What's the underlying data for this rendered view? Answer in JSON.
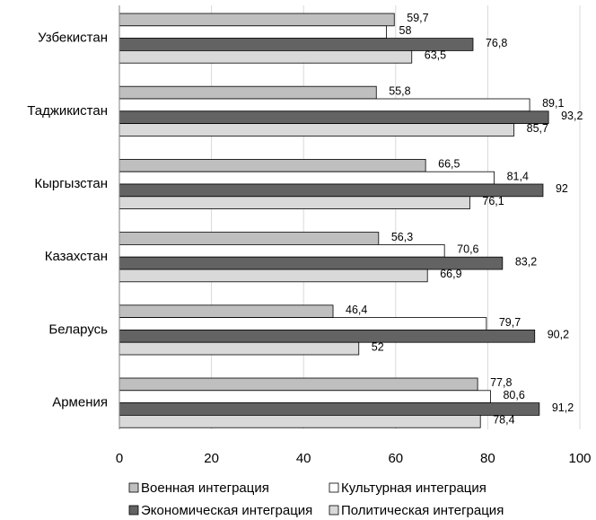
{
  "chart_data": {
    "type": "bar",
    "orientation": "horizontal",
    "title": "",
    "xlabel": "",
    "ylabel": "",
    "xlim": [
      0,
      100
    ],
    "x_ticks": [
      0,
      20,
      40,
      60,
      80,
      100
    ],
    "grid": "vertical",
    "legend_position": "bottom",
    "categories": [
      "Узбекистан",
      "Таджикистан",
      "Кыргызстан",
      "Казахстан",
      "Беларусь",
      "Армения"
    ],
    "series": [
      {
        "name": "Военная интеграция",
        "color": "#bfbfbf",
        "values": [
          59.7,
          55.8,
          66.5,
          56.3,
          46.4,
          77.8
        ],
        "labels": [
          "59,7",
          "55,8",
          "66,5",
          "56,3",
          "46,4",
          "77,8"
        ]
      },
      {
        "name": "Культурная интеграция",
        "color": "#ffffff",
        "values": [
          58,
          89.1,
          81.4,
          70.6,
          79.7,
          80.6
        ],
        "labels": [
          "58",
          "89,1",
          "81,4",
          "70,6",
          "79,7",
          "80,6"
        ]
      },
      {
        "name": "Экономическая интеграция",
        "color": "#636363",
        "values": [
          76.8,
          93.2,
          92,
          83.2,
          90.2,
          91.2
        ],
        "labels": [
          "76,8",
          "93,2",
          "92",
          "83,2",
          "90,2",
          "91,2"
        ]
      },
      {
        "name": "Политическая интеграция",
        "color": "#d9d9d9",
        "values": [
          63.5,
          85.7,
          76.1,
          66.9,
          52,
          78.4
        ],
        "labels": [
          "63,5",
          "85,7",
          "76,1",
          "66,9",
          "52",
          "78,4"
        ]
      }
    ]
  }
}
